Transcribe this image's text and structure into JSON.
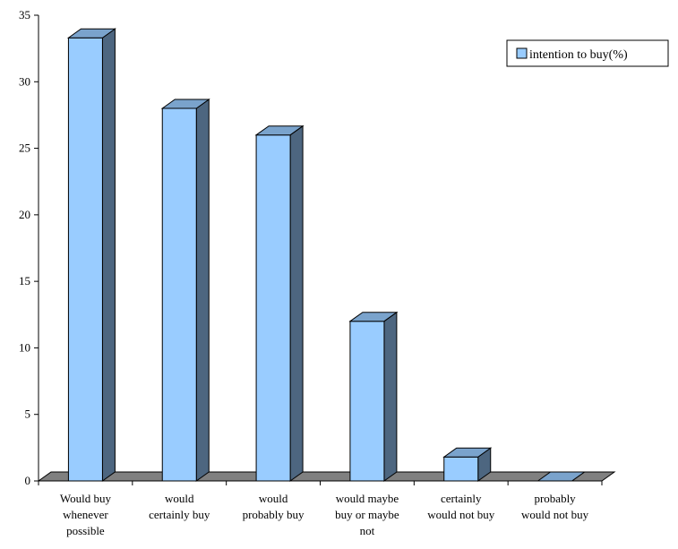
{
  "chart_data": {
    "type": "bar",
    "categories": [
      [
        "Would buy",
        "whenever",
        "possible"
      ],
      [
        "would",
        "certainly buy"
      ],
      [
        "would",
        "probably buy"
      ],
      [
        "would maybe",
        "buy or maybe",
        "not"
      ],
      [
        "certainly",
        "would not buy"
      ],
      [
        "probably",
        "would not buy"
      ]
    ],
    "series": [
      {
        "name": "intention to buy(%)",
        "values": [
          33.3,
          28,
          26,
          12,
          1.8,
          0
        ]
      }
    ],
    "ylim": [
      0,
      35
    ],
    "yticks": [
      "0",
      "5",
      "10",
      "15",
      "20",
      "25",
      "30",
      "35"
    ],
    "grid": false,
    "legend": "top-right",
    "colors": {
      "bar_front": "#99ccff",
      "bar_side": "#4d6680",
      "bar_top": "#7aa3cc",
      "floor": "#808080",
      "outline": "#000000"
    }
  }
}
